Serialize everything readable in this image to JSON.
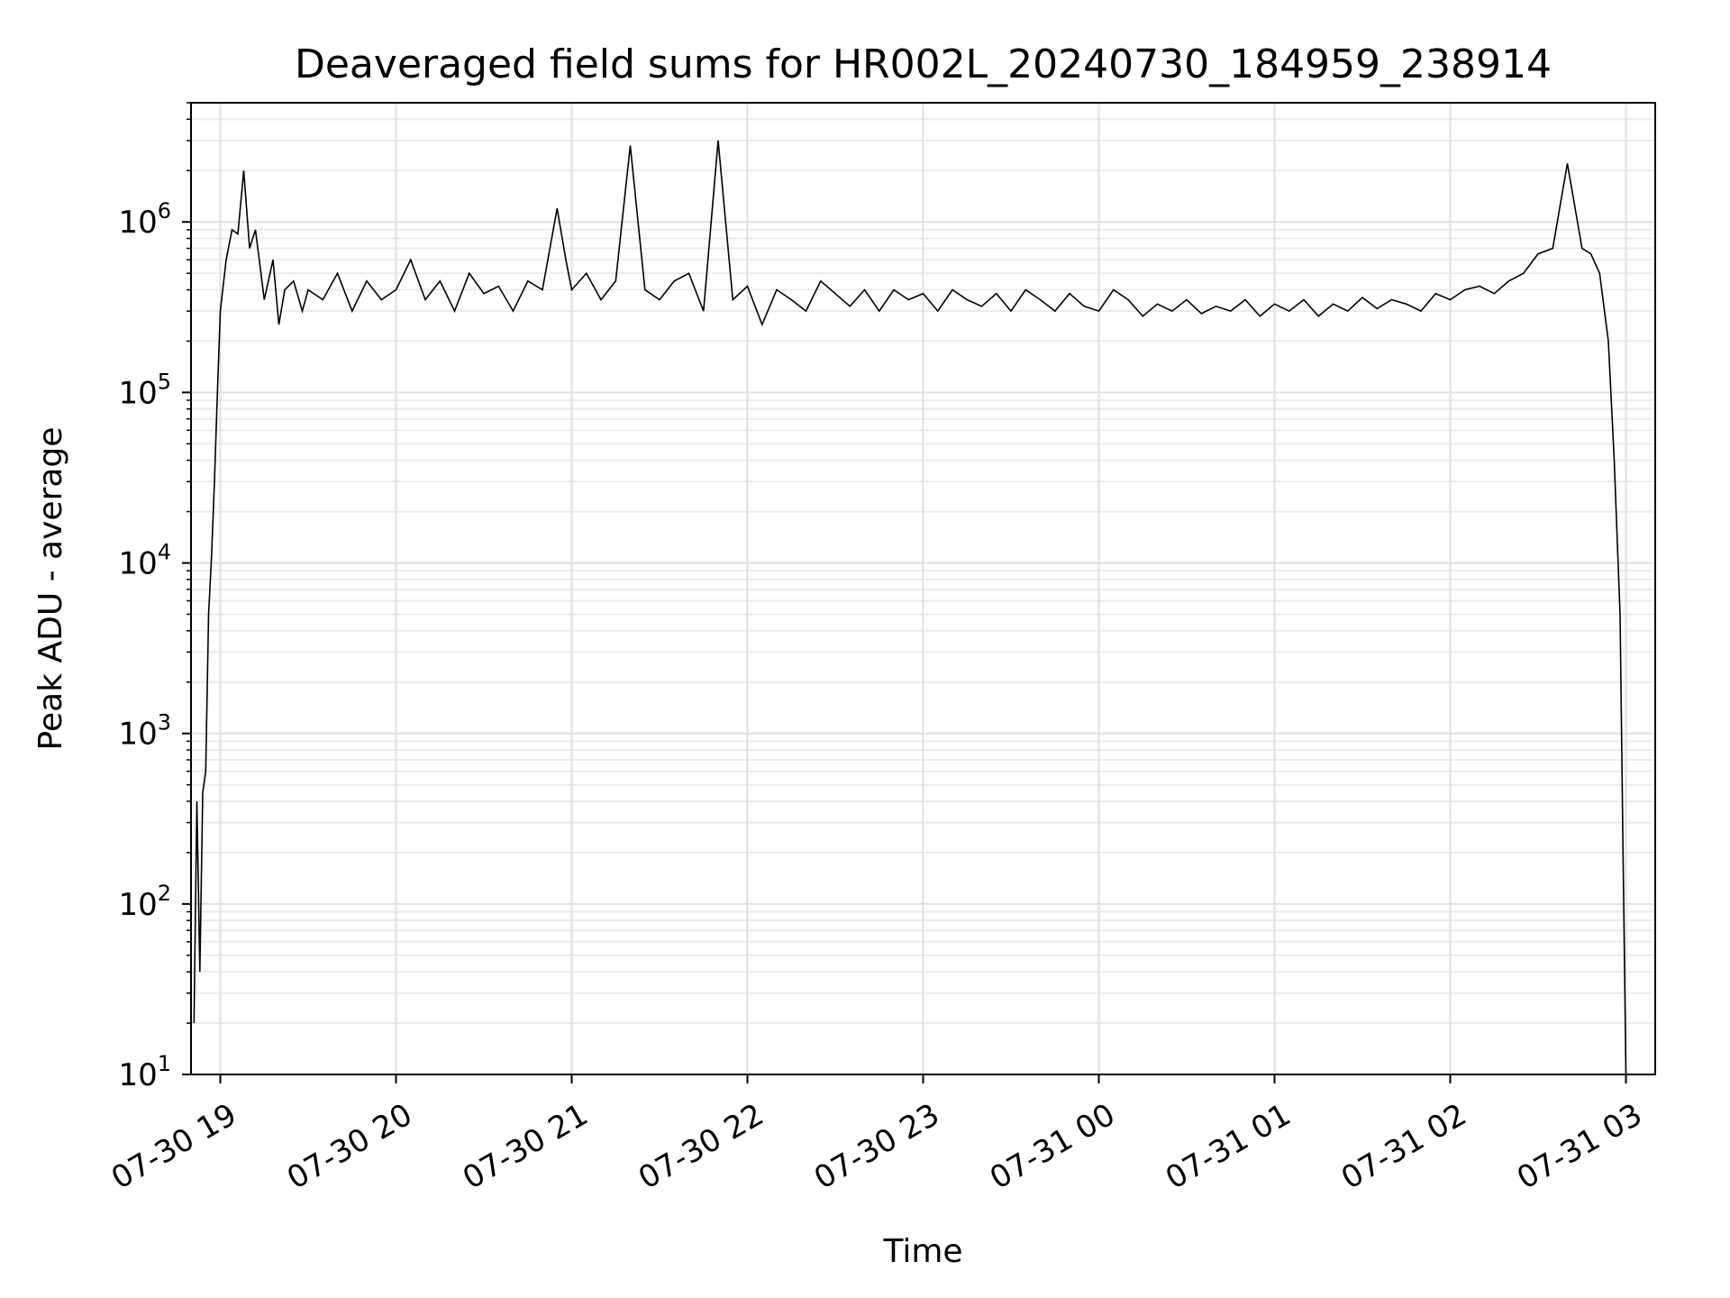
{
  "chart_data": {
    "type": "line",
    "title": "Deaveraged field sums for HR002L_20240730_184959_238914",
    "xlabel": "Time",
    "ylabel": "Peak ADU - average",
    "yscale": "log",
    "ylim": [
      10,
      5000000
    ],
    "xlim": [
      "2024-07-30 18:50",
      "2024-07-31 03:10"
    ],
    "grid": true,
    "grid_which": "both",
    "line_color": "#000000",
    "x_ticks": [
      {
        "t": "2024-07-30 19:00",
        "label": "07-30 19"
      },
      {
        "t": "2024-07-30 20:00",
        "label": "07-30 20"
      },
      {
        "t": "2024-07-30 21:00",
        "label": "07-30 21"
      },
      {
        "t": "2024-07-30 22:00",
        "label": "07-30 22"
      },
      {
        "t": "2024-07-30 23:00",
        "label": "07-30 23"
      },
      {
        "t": "2024-07-31 00:00",
        "label": "07-31 00"
      },
      {
        "t": "2024-07-31 01:00",
        "label": "07-31 01"
      },
      {
        "t": "2024-07-31 02:00",
        "label": "07-31 02"
      },
      {
        "t": "2024-07-31 03:00",
        "label": "07-31 03"
      }
    ],
    "y_ticks": [
      {
        "value": 10,
        "base": "10",
        "exp": "1"
      },
      {
        "value": 100,
        "base": "10",
        "exp": "2"
      },
      {
        "value": 1000,
        "base": "10",
        "exp": "3"
      },
      {
        "value": 10000,
        "base": "10",
        "exp": "4"
      },
      {
        "value": 100000,
        "base": "10",
        "exp": "5"
      },
      {
        "value": 1000000,
        "base": "10",
        "exp": "6"
      }
    ],
    "series": [
      {
        "x": [
          "2024-07-30 18:51",
          "2024-07-30 18:52",
          "2024-07-30 18:53",
          "2024-07-30 18:54",
          "2024-07-30 18:55",
          "2024-07-30 18:56",
          "2024-07-30 18:57",
          "2024-07-30 18:58",
          "2024-07-30 18:59",
          "2024-07-30 19:00",
          "2024-07-30 19:02",
          "2024-07-30 19:04",
          "2024-07-30 19:06",
          "2024-07-30 19:08",
          "2024-07-30 19:10",
          "2024-07-30 19:12",
          "2024-07-30 19:15",
          "2024-07-30 19:18",
          "2024-07-30 19:20",
          "2024-07-30 19:22",
          "2024-07-30 19:25",
          "2024-07-30 19:28",
          "2024-07-30 19:30",
          "2024-07-30 19:35",
          "2024-07-30 19:40",
          "2024-07-30 19:45",
          "2024-07-30 19:50",
          "2024-07-30 19:55",
          "2024-07-30 20:00",
          "2024-07-30 20:05",
          "2024-07-30 20:10",
          "2024-07-30 20:15",
          "2024-07-30 20:20",
          "2024-07-30 20:25",
          "2024-07-30 20:30",
          "2024-07-30 20:35",
          "2024-07-30 20:40",
          "2024-07-30 20:45",
          "2024-07-30 20:50",
          "2024-07-30 20:55",
          "2024-07-30 20:58",
          "2024-07-30 21:00",
          "2024-07-30 21:05",
          "2024-07-30 21:10",
          "2024-07-30 21:15",
          "2024-07-30 21:20",
          "2024-07-30 21:25",
          "2024-07-30 21:30",
          "2024-07-30 21:35",
          "2024-07-30 21:40",
          "2024-07-30 21:45",
          "2024-07-30 21:50",
          "2024-07-30 21:55",
          "2024-07-30 22:00",
          "2024-07-30 22:05",
          "2024-07-30 22:10",
          "2024-07-30 22:15",
          "2024-07-30 22:20",
          "2024-07-30 22:25",
          "2024-07-30 22:30",
          "2024-07-30 22:35",
          "2024-07-30 22:40",
          "2024-07-30 22:45",
          "2024-07-30 22:50",
          "2024-07-30 22:55",
          "2024-07-30 23:00",
          "2024-07-30 23:05",
          "2024-07-30 23:10",
          "2024-07-30 23:15",
          "2024-07-30 23:20",
          "2024-07-30 23:25",
          "2024-07-30 23:30",
          "2024-07-30 23:35",
          "2024-07-30 23:40",
          "2024-07-30 23:45",
          "2024-07-30 23:50",
          "2024-07-30 23:55",
          "2024-07-31 00:00",
          "2024-07-31 00:05",
          "2024-07-31 00:10",
          "2024-07-31 00:15",
          "2024-07-31 00:20",
          "2024-07-31 00:25",
          "2024-07-31 00:30",
          "2024-07-31 00:35",
          "2024-07-31 00:40",
          "2024-07-31 00:45",
          "2024-07-31 00:50",
          "2024-07-31 00:55",
          "2024-07-31 01:00",
          "2024-07-31 01:05",
          "2024-07-31 01:10",
          "2024-07-31 01:15",
          "2024-07-31 01:20",
          "2024-07-31 01:25",
          "2024-07-31 01:30",
          "2024-07-31 01:35",
          "2024-07-31 01:40",
          "2024-07-31 01:45",
          "2024-07-31 01:50",
          "2024-07-31 01:55",
          "2024-07-31 02:00",
          "2024-07-31 02:05",
          "2024-07-31 02:10",
          "2024-07-31 02:15",
          "2024-07-31 02:20",
          "2024-07-31 02:25",
          "2024-07-31 02:30",
          "2024-07-31 02:35",
          "2024-07-31 02:40",
          "2024-07-31 02:45",
          "2024-07-31 02:48",
          "2024-07-31 02:51",
          "2024-07-31 02:54",
          "2024-07-31 02:56",
          "2024-07-31 02:58",
          "2024-07-31 02:59",
          "2024-07-31 03:00"
        ],
        "values": [
          20,
          400,
          40,
          450,
          600,
          5000,
          11000,
          30000,
          100000,
          300000,
          600000,
          900000,
          850000,
          2000000,
          700000,
          900000,
          350000,
          600000,
          250000,
          400000,
          450000,
          300000,
          400000,
          350000,
          500000,
          300000,
          450000,
          350000,
          400000,
          600000,
          350000,
          450000,
          300000,
          500000,
          380000,
          420000,
          300000,
          450000,
          400000,
          1200000,
          600000,
          400000,
          500000,
          350000,
          450000,
          2800000,
          400000,
          350000,
          450000,
          500000,
          300000,
          3000000,
          350000,
          420000,
          250000,
          400000,
          350000,
          300000,
          450000,
          380000,
          320000,
          400000,
          300000,
          400000,
          350000,
          380000,
          300000,
          400000,
          350000,
          320000,
          380000,
          300000,
          400000,
          350000,
          300000,
          380000,
          320000,
          300000,
          400000,
          350000,
          280000,
          330000,
          300000,
          350000,
          290000,
          320000,
          300000,
          350000,
          280000,
          330000,
          300000,
          350000,
          280000,
          330000,
          300000,
          360000,
          310000,
          350000,
          330000,
          300000,
          380000,
          350000,
          400000,
          420000,
          380000,
          450000,
          500000,
          650000,
          700000,
          2200000,
          700000,
          650000,
          500000,
          200000,
          40000,
          5000,
          200,
          10
        ]
      }
    ]
  }
}
